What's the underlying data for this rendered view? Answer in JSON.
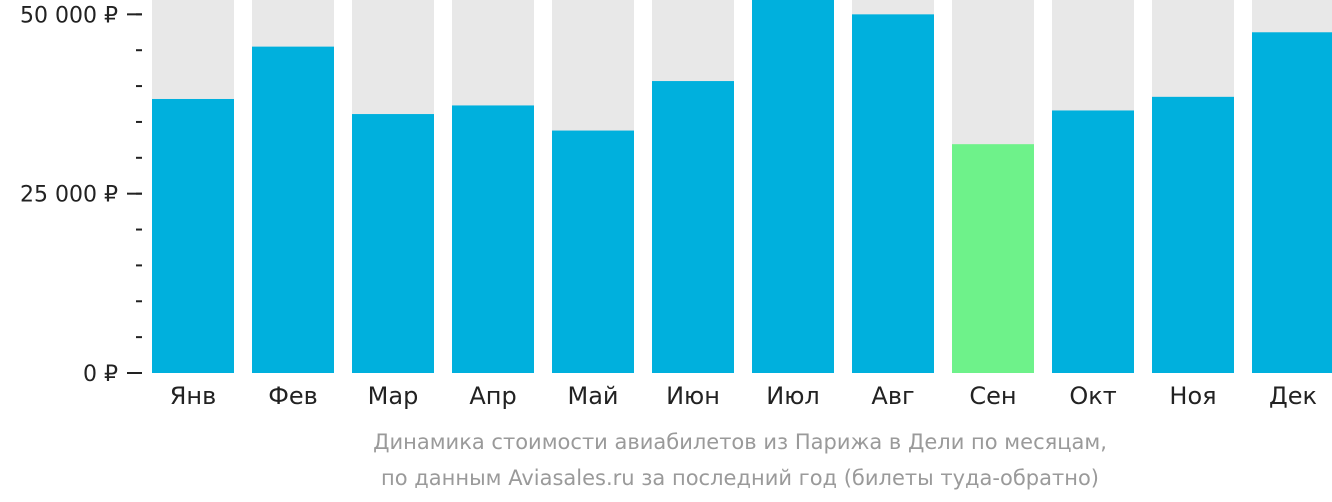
{
  "chart_data": {
    "type": "bar",
    "title": "",
    "xlabel": "",
    "ylabel": "",
    "categories": [
      "Янв",
      "Фев",
      "Мар",
      "Апр",
      "Май",
      "Июн",
      "Июл",
      "Авг",
      "Сен",
      "Окт",
      "Ноя",
      "Дек"
    ],
    "values": [
      38200,
      45500,
      36100,
      37300,
      33800,
      40700,
      52000,
      50000,
      31900,
      36600,
      38500,
      47500
    ],
    "highlight_index": 8,
    "ylim": [
      0,
      52000
    ],
    "y_ticks": [
      {
        "value": 0,
        "label": "0 ₽"
      },
      {
        "value": 25000,
        "label": "25 000 ₽"
      },
      {
        "value": 50000,
        "label": "50 000 ₽"
      }
    ],
    "minor_tick_step": 5000,
    "grid": false,
    "legend": "none"
  },
  "colors": {
    "bar": "#00b0dd",
    "bar_highlight": "#6ef28a",
    "bar_background": "#e8e8e8",
    "axis": "#222222",
    "caption": "#9a9a9a"
  },
  "caption": {
    "line1": "Динамика стоимости авиабилетов из Парижа в Дели по месяцам,",
    "line2": "по данным Aviasales.ru за последний год (билеты туда-обратно)"
  }
}
